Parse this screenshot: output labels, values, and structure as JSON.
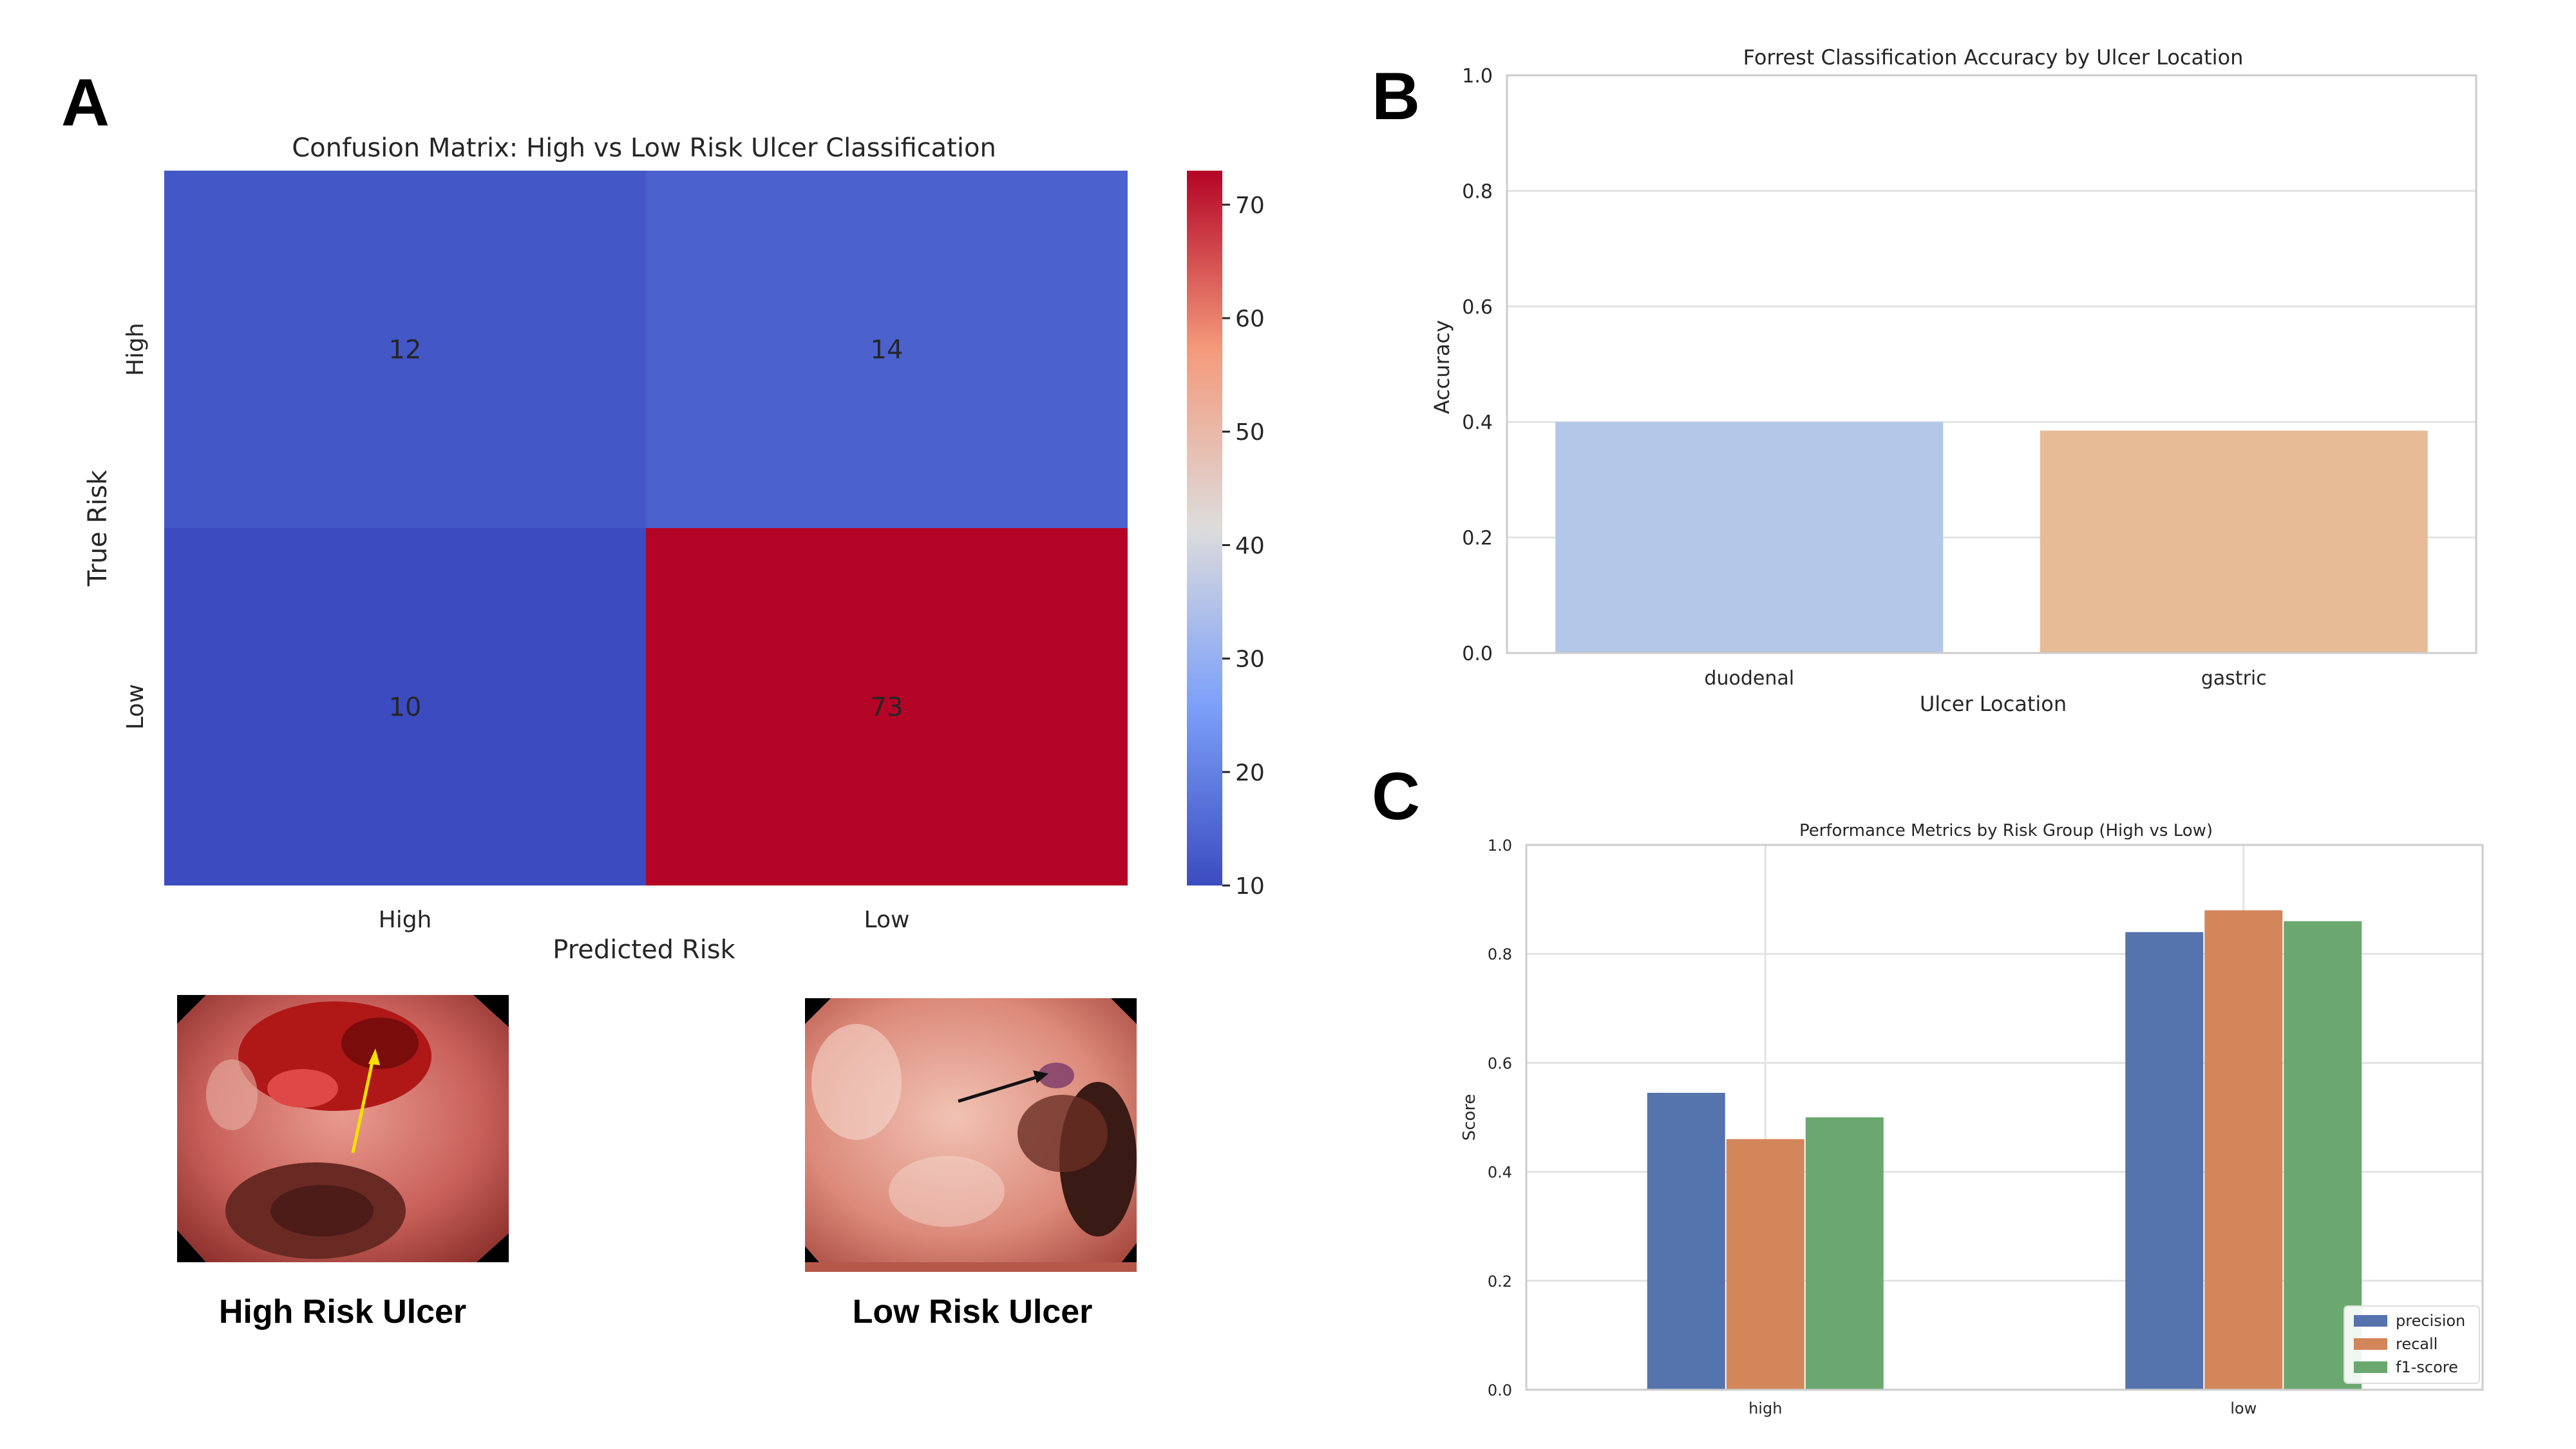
{
  "panels": {
    "a": {
      "letter": "A"
    },
    "b": {
      "letter": "B"
    },
    "c": {
      "letter": "C"
    }
  },
  "images": {
    "high": {
      "caption": "High Risk Ulcer",
      "arrow_color": "#f5e000"
    },
    "low": {
      "caption": "Low Risk Ulcer",
      "arrow_color": "#111111"
    }
  },
  "chart_data": [
    {
      "type": "heatmap",
      "title": "Confusion Matrix: High vs Low Risk Ulcer Classification",
      "xlabel": "Predicted Risk",
      "ylabel": "True Risk",
      "x_categories": [
        "High",
        "Low"
      ],
      "y_categories": [
        "High",
        "Low"
      ],
      "values": [
        [
          12,
          14
        ],
        [
          10,
          73
        ]
      ],
      "colormap": "coolwarm",
      "colorbar": {
        "min": 10,
        "max": 73,
        "ticks": [
          "10",
          "20",
          "30",
          "40",
          "50",
          "60",
          "70"
        ]
      }
    },
    {
      "type": "bar",
      "title": "Forrest Classification Accuracy by Ulcer Location",
      "xlabel": "Ulcer Location",
      "ylabel": "Accuracy",
      "categories": [
        "duodenal",
        "gastric"
      ],
      "values": [
        0.4,
        0.385
      ],
      "colors": [
        "#b3c8e8",
        "#e7bb96"
      ],
      "ylim": [
        0,
        1
      ],
      "yticks": [
        "0.0",
        "0.2",
        "0.4",
        "0.6",
        "0.8",
        "1.0"
      ],
      "grid": true
    },
    {
      "type": "bar",
      "title": "Performance Metrics by Risk Group (High vs Low)",
      "xlabel": "",
      "ylabel": "Score",
      "categories": [
        "high",
        "low"
      ],
      "series": [
        {
          "name": "precision",
          "values": [
            0.545,
            0.84
          ],
          "color": "#5573ad"
        },
        {
          "name": "recall",
          "values": [
            0.46,
            0.88
          ],
          "color": "#d2865a"
        },
        {
          "name": "f1-score",
          "values": [
            0.5,
            0.86
          ],
          "color": "#6aa86f"
        }
      ],
      "ylim": [
        0,
        1
      ],
      "yticks": [
        "0.0",
        "0.2",
        "0.4",
        "0.6",
        "0.8",
        "1.0"
      ],
      "legend": "bottom-right",
      "grid": true
    }
  ]
}
